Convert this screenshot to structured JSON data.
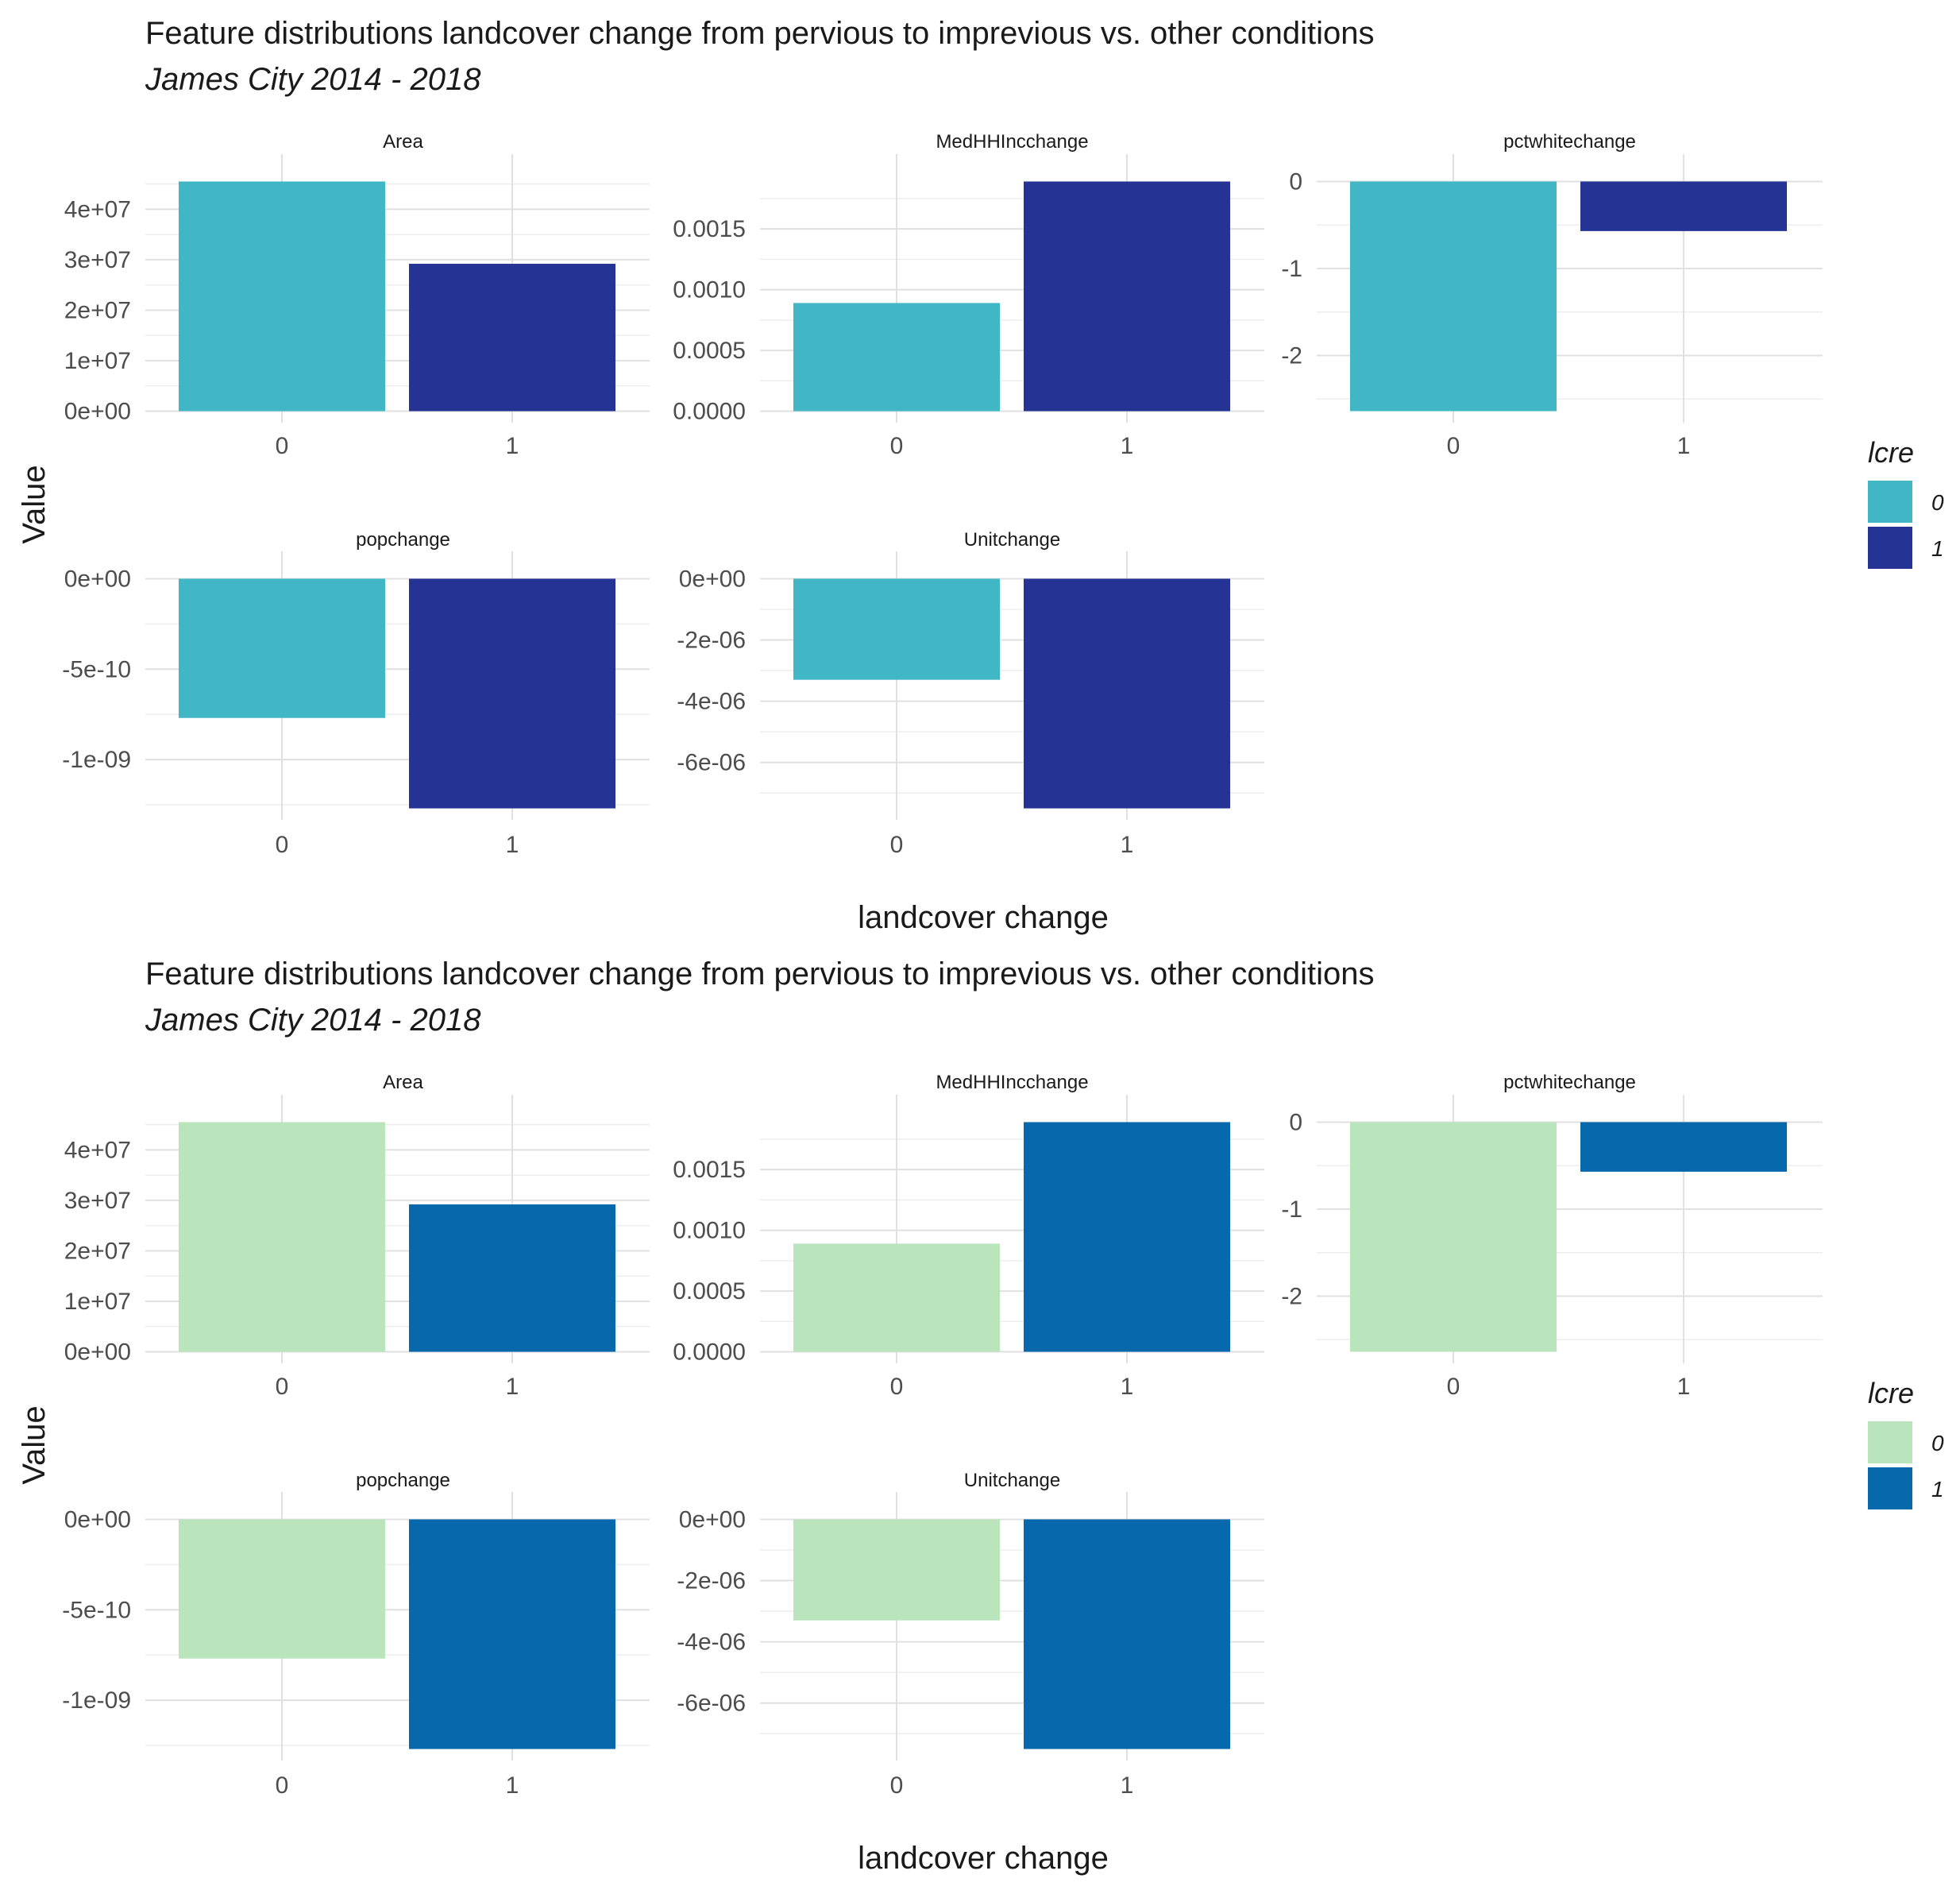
{
  "chart_data": [
    {
      "type": "bar",
      "title": "Feature distributions landcover change from pervious to imprevious vs. other conditions",
      "subtitle": "James City 2014 - 2018",
      "xlabel": "landcover change",
      "ylabel": "Value",
      "legend": {
        "title": "lcre",
        "position": "right",
        "entries": [
          "0",
          "1"
        ]
      },
      "colors": {
        "0": "#41b6c4",
        "1": "#253494"
      },
      "categories": [
        "0",
        "1"
      ],
      "panels": [
        {
          "name": "Area",
          "values": [
            45500000,
            29200000
          ],
          "ylim": [
            0,
            45500000
          ],
          "ticks": [
            0,
            10000000,
            20000000,
            30000000,
            40000000
          ],
          "tick_labels": [
            "0e+00",
            "1e+07",
            "2e+07",
            "3e+07",
            "4e+07"
          ]
        },
        {
          "name": "MedHHIncchange",
          "values": [
            0.00089,
            0.00189
          ],
          "ylim": [
            0,
            0.00189
          ],
          "ticks": [
            0,
            0.0005,
            0.001,
            0.0015
          ],
          "tick_labels": [
            "0.0000",
            "0.0005",
            "0.0010",
            "0.0015"
          ]
        },
        {
          "name": "pctwhitechange",
          "values": [
            -2.64,
            -0.57
          ],
          "ylim": [
            -2.64,
            0
          ],
          "ticks": [
            0,
            -1,
            -2
          ],
          "tick_labels": [
            "0",
            "-1",
            "-2"
          ]
        },
        {
          "name": "popchange",
          "values": [
            -7.7e-10,
            -1.27e-09
          ],
          "ylim": [
            -1.27e-09,
            0
          ],
          "ticks": [
            0,
            -5e-10,
            -1e-09
          ],
          "tick_labels": [
            "0e+00",
            "-5e-10",
            "-1e-09"
          ]
        },
        {
          "name": "Unitchange",
          "values": [
            -3.3e-06,
            -7.5e-06
          ],
          "ylim": [
            -7.5e-06,
            0
          ],
          "ticks": [
            0,
            -2e-06,
            -4e-06,
            -6e-06
          ],
          "tick_labels": [
            "0e+00",
            "-2e-06",
            "-4e-06",
            "-6e-06"
          ]
        }
      ]
    },
    {
      "type": "bar",
      "title": "Feature distributions landcover change from pervious to imprevious vs. other conditions",
      "subtitle": "James City 2014 - 2018",
      "xlabel": "landcover change",
      "ylabel": "Value",
      "legend": {
        "title": "lcre",
        "position": "right",
        "entries": [
          "0",
          "1"
        ]
      },
      "colors": {
        "0": "#bae4bc",
        "1": "#0868ac"
      },
      "categories": [
        "0",
        "1"
      ],
      "panels": [
        {
          "name": "Area",
          "values": [
            45500000,
            29200000
          ],
          "ylim": [
            0,
            45500000
          ],
          "ticks": [
            0,
            10000000,
            20000000,
            30000000,
            40000000
          ],
          "tick_labels": [
            "0e+00",
            "1e+07",
            "2e+07",
            "3e+07",
            "4e+07"
          ]
        },
        {
          "name": "MedHHIncchange",
          "values": [
            0.00089,
            0.00189
          ],
          "ylim": [
            0,
            0.00189
          ],
          "ticks": [
            0,
            0.0005,
            0.001,
            0.0015
          ],
          "tick_labels": [
            "0.0000",
            "0.0005",
            "0.0010",
            "0.0015"
          ]
        },
        {
          "name": "pctwhitechange",
          "values": [
            -2.64,
            -0.57
          ],
          "ylim": [
            -2.64,
            0
          ],
          "ticks": [
            0,
            -1,
            -2
          ],
          "tick_labels": [
            "0",
            "-1",
            "-2"
          ]
        },
        {
          "name": "popchange",
          "values": [
            -7.7e-10,
            -1.27e-09
          ],
          "ylim": [
            -1.27e-09,
            0
          ],
          "ticks": [
            0,
            -5e-10,
            -1e-09
          ],
          "tick_labels": [
            "0e+00",
            "-5e-10",
            "-1e-09"
          ]
        },
        {
          "name": "Unitchange",
          "values": [
            -3.3e-06,
            -7.5e-06
          ],
          "ylim": [
            -7.5e-06,
            0
          ],
          "ticks": [
            0,
            -2e-06,
            -4e-06,
            -6e-06
          ],
          "tick_labels": [
            "0e+00",
            "-2e-06",
            "-4e-06",
            "-6e-06"
          ]
        }
      ]
    }
  ]
}
